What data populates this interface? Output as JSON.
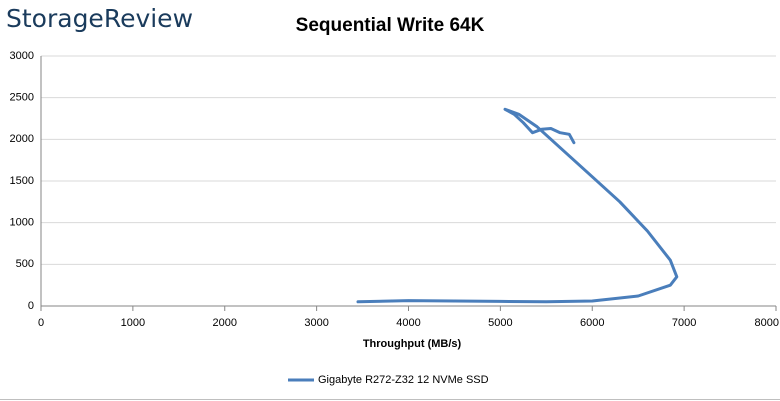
{
  "logo": "StorageReview",
  "chart_data": {
    "type": "line",
    "title": "Sequential Write 64K",
    "x_label": "Throughput (MB/s)",
    "xlim": [
      0,
      8000
    ],
    "xticks": [
      0,
      1000,
      2000,
      3000,
      4000,
      5000,
      6000,
      7000,
      8000
    ],
    "ylim": [
      0,
      3000
    ],
    "yticks": [
      0,
      500,
      1000,
      1500,
      2000,
      2500,
      3000
    ],
    "grid": true,
    "legend": "bottom",
    "series": [
      {
        "name": "Gigabyte R272-Z32 12 NVMe SSD",
        "color": "#4a7ebb",
        "x": [
          3450,
          4000,
          5000,
          5500,
          6000,
          6500,
          6850,
          6920,
          6850,
          6600,
          6300,
          6000,
          5700,
          5400,
          5200,
          5050,
          5150,
          5250,
          5350,
          5450,
          5550,
          5650,
          5750,
          5800
        ],
        "values": [
          50,
          65,
          55,
          50,
          60,
          120,
          250,
          350,
          550,
          900,
          1250,
          1550,
          1850,
          2150,
          2300,
          2360,
          2300,
          2200,
          2080,
          2120,
          2130,
          2080,
          2060,
          1960
        ]
      }
    ]
  }
}
